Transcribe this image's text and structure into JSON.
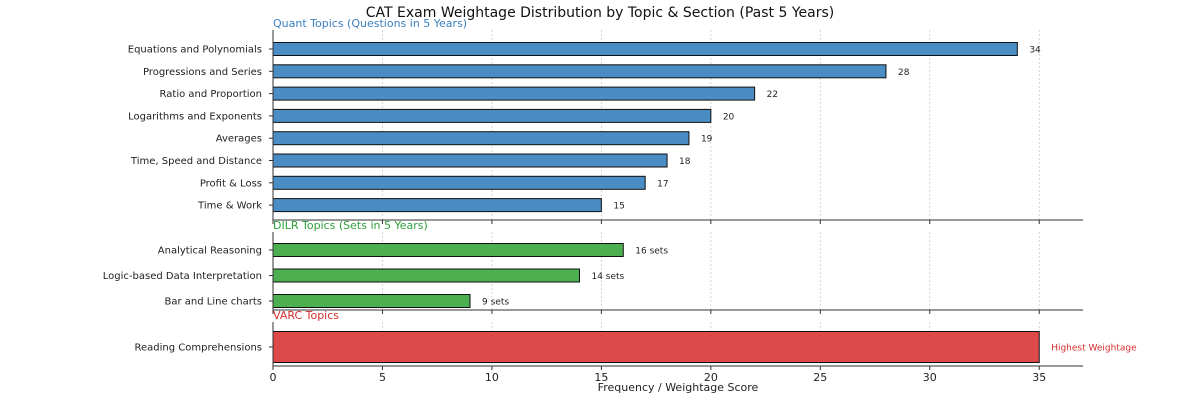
{
  "chart_data": {
    "type": "bar",
    "orientation": "horizontal",
    "title": "CAT Exam Weightage Distribution by Topic & Section (Past 5 Years)",
    "xlabel": "Frequency / Weightage Score",
    "xlim": [
      0,
      37
    ],
    "xticks": [
      0,
      5,
      10,
      15,
      20,
      25,
      30,
      35
    ],
    "grid": true,
    "panels": [
      {
        "id": "quant",
        "title": "Quant Topics (Questions in 5 Years)",
        "color": "#4a8cc4",
        "title_color": "#3a7fc0",
        "categories": [
          "Equations and Polynomials",
          "Progressions and Series",
          "Ratio and Proportion",
          "Logarithms and Exponents",
          "Averages",
          "Time, Speed and Distance",
          "Profit & Loss",
          "Time & Work"
        ],
        "values": [
          34,
          28,
          22,
          20,
          19,
          18,
          17,
          15
        ],
        "labels": [
          "34",
          "28",
          "22",
          "20",
          "19",
          "18",
          "17",
          "15"
        ]
      },
      {
        "id": "dilr",
        "title": "DILR Topics (Sets in 5 Years)",
        "color": "#4caf50",
        "title_color": "#2e9e3a",
        "categories": [
          "Analytical Reasoning",
          "Logic-based Data Interpretation",
          "Bar and Line charts"
        ],
        "values": [
          16,
          14,
          9
        ],
        "labels": [
          "16 sets",
          "14 sets",
          "9 sets"
        ]
      },
      {
        "id": "varc",
        "title": "VARC Topics",
        "color": "#de4a4a",
        "title_color": "#d62d2d",
        "categories": [
          "Reading Comprehensions"
        ],
        "values": [
          35
        ],
        "labels": [
          "Highest Weightage"
        ],
        "label_color": "#d62d2d"
      }
    ]
  }
}
